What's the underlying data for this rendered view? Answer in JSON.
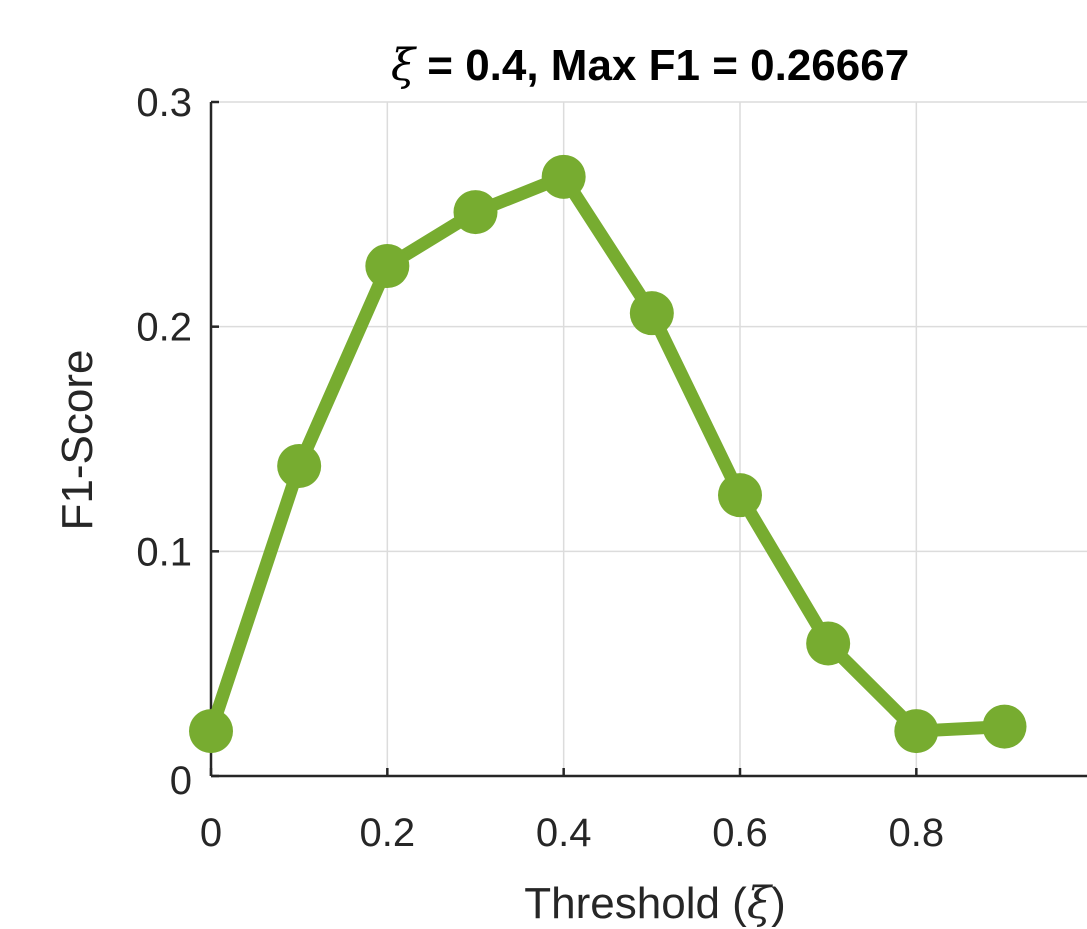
{
  "chart_data": {
    "type": "line",
    "title_prefix": "ξ",
    "title_rest": " = 0.4, Max F1 = 0.26667",
    "xlabel_text": "Threshold (",
    "xlabel_symbol": "ξ",
    "xlabel_close": ")",
    "ylabel": "F1-Score",
    "xlim": [
      0,
      1
    ],
    "ylim": [
      0,
      0.3
    ],
    "x_ticks": [
      {
        "value": 0,
        "label": "0"
      },
      {
        "value": 0.2,
        "label": "0.2"
      },
      {
        "value": 0.4,
        "label": "0.4"
      },
      {
        "value": 0.6,
        "label": "0.6"
      },
      {
        "value": 0.8,
        "label": "0.8"
      }
    ],
    "y_ticks": [
      {
        "value": 0,
        "label": "0"
      },
      {
        "value": 0.1,
        "label": "0.1"
      },
      {
        "value": 0.2,
        "label": "0.2"
      },
      {
        "value": 0.3,
        "label": "0.3"
      }
    ],
    "grid": true,
    "series": [
      {
        "color": "#77ac30",
        "marker": "filled-circle",
        "x": [
          0,
          0.1,
          0.2,
          0.3,
          0.4,
          0.5,
          0.6,
          0.7,
          0.8,
          0.9
        ],
        "y": [
          0.02,
          0.138,
          0.227,
          0.251,
          0.2667,
          0.206,
          0.125,
          0.059,
          0.02,
          0.022
        ]
      }
    ]
  }
}
